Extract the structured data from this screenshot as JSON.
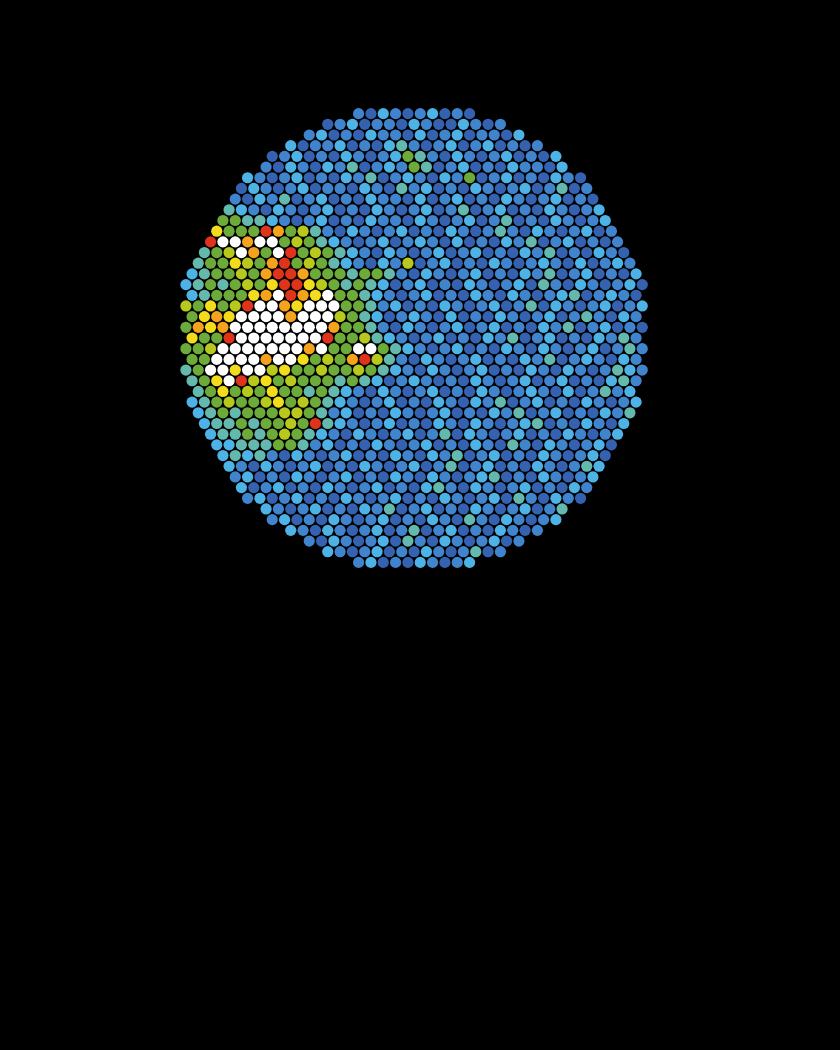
{
  "chart_data": {
    "type": "heatmap",
    "tick_labels": false,
    "cells": [
      [
        1,
        0,
        2,
        1,
        0,
        1,
        2,
        0,
        1,
        0
      ],
      [
        0,
        1,
        2,
        0,
        1,
        1,
        0,
        2,
        1,
        0,
        0,
        2,
        1,
        0,
        1
      ],
      [
        1,
        2,
        0,
        1,
        0,
        2,
        1,
        1,
        0,
        2,
        0,
        1,
        2,
        0,
        1,
        1,
        0,
        2
      ],
      [
        2,
        0,
        1,
        1,
        2,
        0,
        1,
        0,
        2,
        3,
        1,
        0,
        1,
        2,
        0,
        1,
        2,
        0,
        1,
        0,
        1
      ],
      [
        0,
        1,
        2,
        0,
        1,
        0,
        2,
        1,
        0,
        1,
        2,
        4,
        3,
        1,
        0,
        2,
        1,
        0,
        1,
        2,
        0,
        1,
        0,
        2
      ],
      [
        1,
        0,
        2,
        1,
        0,
        2,
        1,
        3,
        0,
        1,
        2,
        1,
        4,
        3,
        0,
        1,
        2,
        0,
        1,
        0,
        2,
        1,
        1,
        0,
        2
      ],
      [
        2,
        1,
        0,
        1,
        2,
        0,
        1,
        0,
        2,
        1,
        3,
        0,
        1,
        2,
        1,
        0,
        2,
        1,
        4,
        0,
        1,
        2,
        0,
        1,
        0,
        2,
        1,
        0
      ],
      [
        0,
        2,
        1,
        0,
        1,
        2,
        0,
        1,
        1,
        0,
        2,
        1,
        0,
        3,
        1,
        2,
        0,
        1,
        0,
        2,
        1,
        0,
        1,
        2,
        0,
        1,
        3,
        0,
        1
      ],
      [
        1,
        0,
        2,
        1,
        3,
        0,
        1,
        2,
        0,
        1,
        0,
        2,
        1,
        1,
        0,
        2,
        0,
        1,
        2,
        0,
        1,
        0,
        2,
        1,
        0,
        1,
        2,
        0,
        1,
        0
      ],
      [
        3,
        2,
        1,
        0,
        2,
        1,
        0,
        1,
        2,
        0,
        1,
        0,
        2,
        1,
        0,
        1,
        2,
        0,
        1,
        3,
        0,
        1,
        2,
        0,
        1,
        0,
        2,
        1,
        0,
        1,
        2
      ],
      [
        4,
        4,
        3,
        3,
        2,
        1,
        0,
        1,
        2,
        0,
        1,
        0,
        2,
        1,
        1,
        0,
        2,
        1,
        0,
        1,
        2,
        0,
        1,
        3,
        0,
        1,
        0,
        2,
        1,
        0,
        1,
        2
      ],
      [
        6,
        4,
        4,
        4,
        8,
        7,
        4,
        5,
        3,
        1,
        0,
        2,
        1,
        0,
        1,
        2,
        0,
        1,
        0,
        2,
        1,
        0,
        1,
        3,
        1,
        0,
        2,
        1,
        0,
        1,
        2,
        0,
        1
      ],
      [
        8,
        9,
        9,
        7,
        9,
        9,
        4,
        5,
        4,
        3,
        2,
        1,
        0,
        1,
        2,
        0,
        1,
        2,
        1,
        0,
        2,
        0,
        1,
        0,
        2,
        1,
        3,
        0,
        1,
        2,
        0,
        1,
        0,
        1
      ],
      [
        3,
        4,
        5,
        9,
        7,
        4,
        9,
        8,
        4,
        5,
        4,
        3,
        2,
        1,
        0,
        2,
        1,
        0,
        1,
        2,
        0,
        1,
        2,
        0,
        1,
        0,
        2,
        1,
        3,
        0,
        1,
        0,
        2,
        1,
        0
      ],
      [
        3,
        4,
        4,
        6,
        5,
        4,
        7,
        8,
        4,
        5,
        4,
        3,
        2,
        1,
        0,
        2,
        1,
        5,
        0,
        1,
        2,
        0,
        1,
        0,
        2,
        1,
        0,
        1,
        2,
        1,
        0,
        2,
        0,
        1,
        2,
        1
      ],
      [
        2,
        3,
        4,
        4,
        5,
        4,
        7,
        8,
        8,
        7,
        4,
        4,
        4,
        3,
        4,
        4,
        3,
        1,
        0,
        2,
        1,
        0,
        1,
        2,
        0,
        1,
        0,
        2,
        1,
        3,
        0,
        1,
        2,
        0,
        1,
        0,
        2
      ],
      [
        2,
        3,
        4,
        3,
        4,
        5,
        4,
        6,
        8,
        8,
        6,
        5,
        4,
        3,
        4,
        3,
        2,
        0,
        1,
        2,
        0,
        1,
        0,
        2,
        1,
        0,
        1,
        2,
        0,
        3,
        1,
        0,
        2,
        1,
        0,
        1,
        2,
        0
      ],
      [
        2,
        3,
        4,
        4,
        4,
        6,
        7,
        9,
        8,
        7,
        6,
        9,
        4,
        4,
        3,
        2,
        1,
        0,
        1,
        2,
        0,
        1,
        0,
        2,
        1,
        0,
        2,
        1,
        0,
        1,
        2,
        3,
        0,
        1,
        2,
        1,
        0
      ],
      [
        5,
        4,
        6,
        4,
        5,
        8,
        9,
        9,
        7,
        6,
        9,
        9,
        9,
        4,
        4,
        3,
        1,
        2,
        0,
        1,
        0,
        2,
        1,
        0,
        1,
        2,
        0,
        1,
        3,
        0,
        2,
        1,
        0,
        1,
        2,
        0,
        1,
        2
      ],
      [
        4,
        6,
        7,
        6,
        9,
        9,
        9,
        9,
        7,
        9,
        9,
        9,
        5,
        4,
        3,
        2,
        0,
        1,
        2,
        1,
        0,
        2,
        0,
        1,
        0,
        2,
        1,
        0,
        1,
        2,
        0,
        1,
        3,
        1,
        0,
        2,
        1
      ],
      [
        4,
        7,
        6,
        7,
        9,
        9,
        9,
        9,
        9,
        9,
        9,
        9,
        7,
        4,
        4,
        3,
        1,
        0,
        2,
        1,
        0,
        1,
        2,
        0,
        1,
        2,
        0,
        1,
        0,
        2,
        1,
        3,
        0,
        1,
        2,
        0,
        1,
        0
      ],
      [
        6,
        4,
        4,
        8,
        9,
        9,
        9,
        9,
        9,
        9,
        9,
        8,
        4,
        4,
        5,
        3,
        2,
        1,
        0,
        1,
        2,
        0,
        1,
        0,
        2,
        1,
        3,
        0,
        1,
        2,
        0,
        1,
        0,
        2,
        1,
        3,
        1
      ],
      [
        4,
        4,
        5,
        9,
        9,
        9,
        9,
        9,
        9,
        9,
        7,
        9,
        4,
        4,
        9,
        9,
        4,
        3,
        2,
        1,
        0,
        1,
        2,
        0,
        1,
        0,
        2,
        1,
        0,
        2,
        1,
        0,
        1,
        2,
        0,
        1,
        3,
        1
      ],
      [
        4,
        4,
        9,
        9,
        9,
        9,
        7,
        9,
        9,
        6,
        4,
        5,
        4,
        7,
        8,
        5,
        3,
        1,
        0,
        2,
        1,
        0,
        1,
        2,
        0,
        1,
        0,
        2,
        1,
        3,
        0,
        1,
        2,
        1,
        0,
        2,
        1
      ],
      [
        3,
        4,
        9,
        9,
        6,
        9,
        9,
        5,
        6,
        4,
        4,
        5,
        4,
        4,
        5,
        4,
        3,
        2,
        1,
        0,
        2,
        1,
        0,
        1,
        2,
        0,
        1,
        0,
        2,
        1,
        0,
        2,
        1,
        0,
        1,
        3,
        2,
        1
      ],
      [
        3,
        4,
        6,
        9,
        8,
        5,
        6,
        4,
        5,
        4,
        4,
        4,
        3,
        4,
        3,
        2,
        0,
        1,
        2,
        1,
        0,
        1,
        0,
        2,
        1,
        0,
        1,
        2,
        0,
        1,
        2,
        0,
        1,
        0,
        2,
        3,
        1
      ],
      [
        3,
        4,
        6,
        4,
        5,
        4,
        6,
        4,
        4,
        3,
        4,
        3,
        2,
        1,
        0,
        2,
        1,
        0,
        1,
        2,
        0,
        1,
        0,
        2,
        1,
        0,
        1,
        2,
        1,
        0,
        2,
        0,
        1,
        3,
        1,
        2
      ],
      [
        2,
        3,
        4,
        5,
        4,
        4,
        5,
        6,
        4,
        5,
        4,
        3,
        2,
        1,
        0,
        1,
        2,
        0,
        1,
        0,
        2,
        1,
        0,
        2,
        1,
        3,
        0,
        1,
        2,
        0,
        1,
        0,
        2,
        1,
        0,
        1,
        2
      ],
      [
        2,
        3,
        4,
        3,
        4,
        4,
        4,
        5,
        5,
        4,
        3,
        1,
        2,
        0,
        1,
        0,
        2,
        1,
        0,
        1,
        2,
        0,
        1,
        0,
        2,
        1,
        3,
        0,
        1,
        2,
        0,
        1,
        0,
        2,
        1,
        3
      ],
      [
        2,
        3,
        3,
        4,
        3,
        4,
        4,
        5,
        4,
        8,
        3,
        2,
        1,
        0,
        1,
        2,
        0,
        1,
        0,
        2,
        1,
        0,
        2,
        1,
        0,
        1,
        2,
        3,
        0,
        1,
        0,
        2,
        1,
        0,
        2
      ],
      [
        2,
        3,
        3,
        4,
        3,
        4,
        5,
        4,
        3,
        2,
        1,
        0,
        2,
        1,
        0,
        1,
        2,
        0,
        1,
        3,
        0,
        2,
        1,
        0,
        1,
        2,
        0,
        1,
        0,
        2,
        1,
        0,
        1,
        2
      ],
      [
        2,
        2,
        3,
        3,
        3,
        4,
        4,
        3,
        1,
        2,
        0,
        1,
        0,
        2,
        1,
        0,
        1,
        2,
        0,
        1,
        0,
        2,
        1,
        0,
        3,
        1,
        0,
        2,
        1,
        0,
        1,
        2,
        0
      ],
      [
        2,
        3,
        2,
        3,
        1,
        0,
        2,
        1,
        0,
        1,
        2,
        0,
        1,
        0,
        2,
        1,
        0,
        2,
        1,
        3,
        0,
        1,
        2,
        0,
        1,
        0,
        2,
        1,
        0,
        1,
        2,
        0
      ],
      [
        2,
        1,
        0,
        2,
        1,
        0,
        1,
        2,
        0,
        1,
        0,
        2,
        1,
        0,
        1,
        2,
        0,
        1,
        3,
        0,
        1,
        2,
        0,
        1,
        0,
        2,
        1,
        0,
        1,
        3,
        2
      ],
      [
        1,
        2,
        0,
        1,
        0,
        2,
        1,
        0,
        1,
        2,
        0,
        1,
        0,
        2,
        1,
        0,
        2,
        1,
        0,
        1,
        2,
        3,
        0,
        1,
        0,
        2,
        1,
        0,
        1,
        2
      ],
      [
        2,
        0,
        1,
        2,
        0,
        1,
        0,
        2,
        1,
        0,
        1,
        2,
        0,
        1,
        0,
        2,
        3,
        1,
        0,
        2,
        1,
        0,
        1,
        2,
        0,
        1,
        0,
        2,
        1
      ],
      [
        1,
        2,
        0,
        1,
        2,
        0,
        1,
        0,
        2,
        1,
        0,
        1,
        2,
        0,
        1,
        0,
        2,
        1,
        0,
        1,
        2,
        0,
        3,
        1,
        0,
        2,
        1,
        0
      ],
      [
        2,
        1,
        0,
        1,
        2,
        0,
        1,
        0,
        2,
        1,
        3,
        0,
        1,
        2,
        0,
        1,
        0,
        2,
        1,
        0,
        1,
        2,
        0,
        1,
        3
      ],
      [
        1,
        2,
        0,
        1,
        0,
        2,
        1,
        0,
        1,
        2,
        0,
        1,
        0,
        2,
        1,
        0,
        3,
        1,
        0,
        2,
        1,
        0,
        1,
        2
      ],
      [
        2,
        1,
        0,
        2,
        1,
        0,
        1,
        2,
        0,
        1,
        3,
        0,
        1,
        2,
        0,
        1,
        0,
        2,
        1,
        0,
        1
      ],
      [
        1,
        0,
        2,
        1,
        0,
        1,
        2,
        0,
        3,
        1,
        0,
        2,
        1,
        0,
        1,
        2,
        0,
        1
      ],
      [
        2,
        1,
        0,
        1,
        2,
        0,
        1,
        0,
        2,
        1,
        0,
        1,
        3,
        0,
        1
      ],
      [
        1,
        2,
        0,
        1,
        0,
        2,
        1,
        0,
        1,
        2
      ]
    ]
  }
}
